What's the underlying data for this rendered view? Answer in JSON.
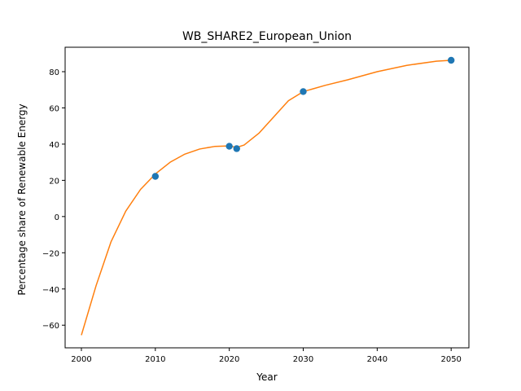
{
  "chart_data": {
    "type": "line",
    "title": "WB_SHARE2_European_Union",
    "xlabel": "Year",
    "ylabel": "Percentage share of Renewable Energy",
    "xlim": [
      1997.8,
      2052.4
    ],
    "ylim": [
      -72.5,
      93.5
    ],
    "x_ticks": [
      2000,
      2010,
      2020,
      2030,
      2040,
      2050
    ],
    "y_ticks": [
      -60,
      -40,
      -20,
      0,
      20,
      40,
      60,
      80
    ],
    "grid": false,
    "legend": "none",
    "series": [
      {
        "kind": "scatter",
        "color": "#1f77b4",
        "x": [
          2010,
          2020,
          2021,
          2030,
          2050
        ],
        "y": [
          22.2,
          38.8,
          37.5,
          69.0,
          86.3
        ]
      },
      {
        "kind": "line",
        "color": "#ff7f0e",
        "x": [
          2000,
          2002,
          2004,
          2006,
          2008,
          2010,
          2012,
          2014,
          2016,
          2018,
          2020,
          2021,
          2022,
          2024,
          2026,
          2028,
          2030,
          2033,
          2036,
          2040,
          2044,
          2048,
          2050
        ],
        "y": [
          -65.5,
          -38,
          -14,
          3,
          15,
          23.5,
          30,
          34.5,
          37.3,
          38.7,
          39.0,
          38.2,
          39.5,
          46,
          55,
          64,
          69.0,
          72.5,
          75.5,
          80,
          83.5,
          85.8,
          86.3
        ]
      }
    ]
  }
}
